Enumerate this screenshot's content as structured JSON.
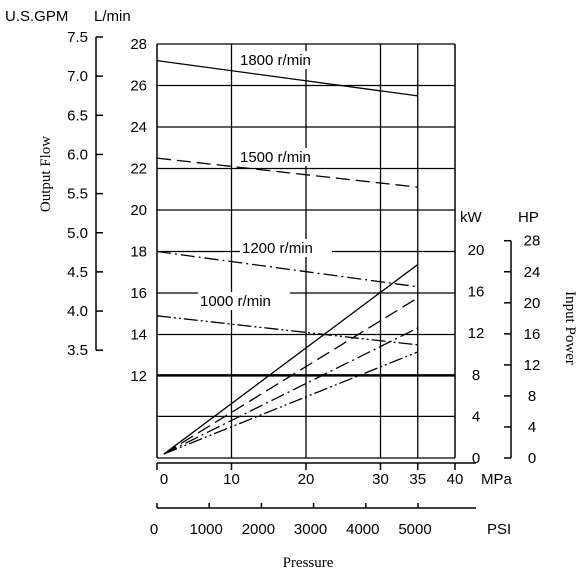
{
  "chart_data": {
    "type": "line",
    "xlabel": "Pressure",
    "x_unit_mpa": "MPa",
    "x_unit_psi": "PSI",
    "mpa_ticks": [
      "0",
      "10",
      "20",
      "30",
      "35",
      "40"
    ],
    "psi_ticks": [
      "0",
      "1000",
      "2000",
      "3000",
      "4000",
      "5000"
    ],
    "flow_axis": {
      "label": "Output Flow",
      "unit_lmin": "L/min",
      "unit_gpm": "U.S.GPM",
      "lmin_ticks": [
        "28",
        "26",
        "24",
        "22",
        "20",
        "18",
        "16",
        "14",
        "12"
      ],
      "gpm_ticks": [
        "7.5",
        "7.0",
        "6.5",
        "6.0",
        "5.5",
        "5.0",
        "4.5",
        "4.0",
        "3.5"
      ]
    },
    "power_axis": {
      "label": "Input Power",
      "unit_kw": "kW",
      "unit_hp": "HP",
      "kw_ticks": [
        "20",
        "16",
        "12",
        "8",
        "4",
        "0"
      ],
      "hp_ticks": [
        "28",
        "24",
        "20",
        "16",
        "12",
        "8",
        "4",
        "0"
      ]
    },
    "series": [
      {
        "name": "1800 r/min",
        "dash": "solid",
        "flow_x": [
          0,
          35
        ],
        "flow_y": [
          27.2,
          25.5
        ],
        "power_x": [
          0,
          35
        ],
        "power_y": [
          0.2,
          18.6
        ]
      },
      {
        "name": "1500 r/min",
        "dash": "dash",
        "flow_x": [
          0,
          35
        ],
        "flow_y": [
          22.5,
          21.1
        ],
        "power_x": [
          0,
          35
        ],
        "power_y": [
          0.2,
          15.4
        ]
      },
      {
        "name": "1200 r/min",
        "dash": "dashdot",
        "flow_x": [
          0,
          35
        ],
        "flow_y": [
          18.0,
          16.3
        ],
        "power_x": [
          0,
          35
        ],
        "power_y": [
          0.2,
          12.5
        ]
      },
      {
        "name": "1000 r/min",
        "dash": "dashdotdot",
        "flow_x": [
          0,
          35
        ],
        "flow_y": [
          14.9,
          13.5
        ],
        "power_x": [
          0,
          35
        ],
        "power_y": [
          0.2,
          10.2
        ]
      }
    ]
  }
}
